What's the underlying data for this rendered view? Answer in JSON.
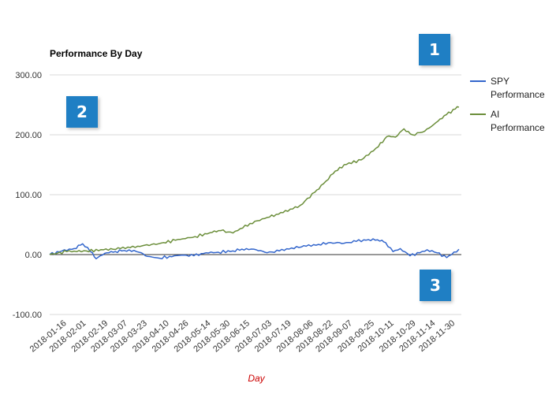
{
  "chart_data": {
    "type": "line",
    "title": "Performance By Day",
    "xlabel": "Day",
    "ylabel": "",
    "ylim": [
      -100,
      300
    ],
    "yticks": [
      "-100.00",
      "0.00",
      "100.00",
      "200.00",
      "300.00"
    ],
    "ytick_values": [
      -100,
      0,
      100,
      200,
      300
    ],
    "x_tick_labels": [
      "2018-01-16",
      "2018-02-01",
      "2018-02-19",
      "2018-03-07",
      "2018-03-23",
      "2018-04-10",
      "2018-04-26",
      "2018-05-14",
      "2018-05-30",
      "2018-06-15",
      "2018-07-03",
      "2018-07-19",
      "2018-08-06",
      "2018-08-22",
      "2018-09-07",
      "2018-09-25",
      "2018-10-11",
      "2018-10-29",
      "2018-11-14",
      "2018-11-30"
    ],
    "x_range": [
      "2018-01-02",
      "2018-12-05"
    ],
    "grid": true,
    "legend_position": "right",
    "series": [
      {
        "name": "SPY Performance",
        "color": "#3366cc",
        "points": [
          [
            "2018-01-02",
            0
          ],
          [
            "2018-01-12",
            6
          ],
          [
            "2018-01-22",
            10
          ],
          [
            "2018-01-29",
            18
          ],
          [
            "2018-02-02",
            12
          ],
          [
            "2018-02-06",
            3
          ],
          [
            "2018-02-09",
            -7
          ],
          [
            "2018-02-16",
            2
          ],
          [
            "2018-02-23",
            4
          ],
          [
            "2018-03-02",
            6
          ],
          [
            "2018-03-12",
            7
          ],
          [
            "2018-03-16",
            4
          ],
          [
            "2018-03-23",
            -3
          ],
          [
            "2018-04-02",
            -6
          ],
          [
            "2018-04-10",
            -3
          ],
          [
            "2018-04-20",
            -1
          ],
          [
            "2018-04-30",
            -2
          ],
          [
            "2018-05-10",
            3
          ],
          [
            "2018-05-20",
            4
          ],
          [
            "2018-06-01",
            6
          ],
          [
            "2018-06-12",
            10
          ],
          [
            "2018-06-20",
            8
          ],
          [
            "2018-06-29",
            3
          ],
          [
            "2018-07-09",
            6
          ],
          [
            "2018-07-19",
            11
          ],
          [
            "2018-07-31",
            14
          ],
          [
            "2018-08-10",
            17
          ],
          [
            "2018-08-20",
            20
          ],
          [
            "2018-08-31",
            19
          ],
          [
            "2018-09-10",
            22
          ],
          [
            "2018-09-20",
            25
          ],
          [
            "2018-10-01",
            24
          ],
          [
            "2018-10-04",
            20
          ],
          [
            "2018-10-10",
            5
          ],
          [
            "2018-10-16",
            10
          ],
          [
            "2018-10-24",
            -2
          ],
          [
            "2018-11-01",
            3
          ],
          [
            "2018-11-07",
            8
          ],
          [
            "2018-11-15",
            3
          ],
          [
            "2018-11-23",
            -5
          ],
          [
            "2018-11-27",
            0
          ],
          [
            "2018-12-03",
            9
          ]
        ]
      },
      {
        "name": "AI Performance",
        "color": "#6b8e3a",
        "points": [
          [
            "2018-01-02",
            0
          ],
          [
            "2018-01-16",
            5
          ],
          [
            "2018-02-01",
            6
          ],
          [
            "2018-02-15",
            8
          ],
          [
            "2018-03-01",
            10
          ],
          [
            "2018-03-15",
            14
          ],
          [
            "2018-04-01",
            18
          ],
          [
            "2018-04-15",
            24
          ],
          [
            "2018-05-01",
            30
          ],
          [
            "2018-05-15",
            37
          ],
          [
            "2018-05-22",
            40
          ],
          [
            "2018-06-01",
            36
          ],
          [
            "2018-06-15",
            52
          ],
          [
            "2018-06-29",
            62
          ],
          [
            "2018-07-12",
            70
          ],
          [
            "2018-07-26",
            82
          ],
          [
            "2018-08-07",
            104
          ],
          [
            "2018-08-14",
            118
          ],
          [
            "2018-08-22",
            135
          ],
          [
            "2018-08-31",
            150
          ],
          [
            "2018-09-14",
            158
          ],
          [
            "2018-09-28",
            180
          ],
          [
            "2018-10-05",
            197
          ],
          [
            "2018-10-12",
            196
          ],
          [
            "2018-10-19",
            210
          ],
          [
            "2018-10-26",
            200
          ],
          [
            "2018-11-05",
            206
          ],
          [
            "2018-11-14",
            220
          ],
          [
            "2018-11-21",
            232
          ],
          [
            "2018-11-30",
            243
          ],
          [
            "2018-12-03",
            246
          ]
        ]
      }
    ],
    "legend_entries": [
      {
        "line1": "SPY",
        "line2": "Performance"
      },
      {
        "line1": "AI",
        "line2": "Performance"
      }
    ]
  },
  "badges": [
    "1",
    "2",
    "3"
  ],
  "colors": {
    "badge_bg": "#1f7fc4",
    "xlabel": "#cc0000",
    "grid": "#cccccc",
    "zero_line": "#333333"
  }
}
